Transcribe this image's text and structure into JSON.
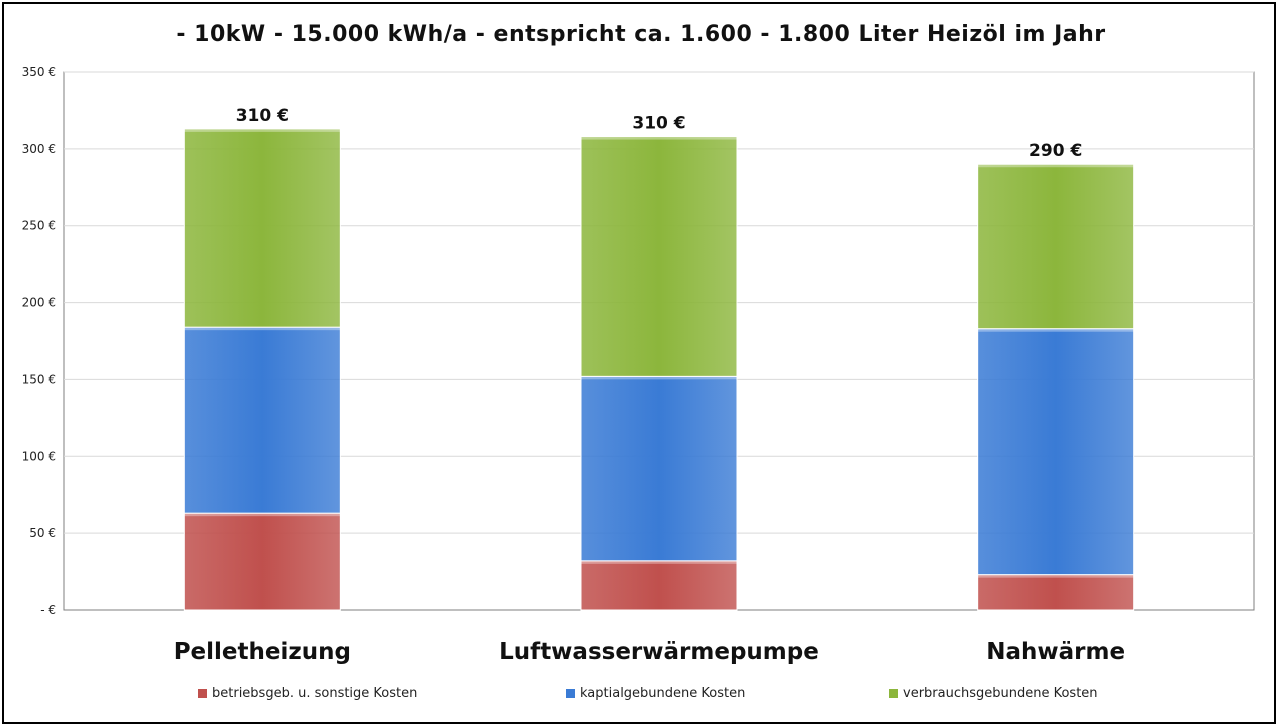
{
  "chart_data": {
    "type": "bar",
    "stacked": true,
    "title": "- 10kW - 15.000 kWh/a - entspricht ca. 1.600 - 1.800 Liter Heizöl im Jahr",
    "categories": [
      "Pelletheizung",
      "Luftwasserwärmepumpe",
      "Nahwärme"
    ],
    "series": [
      {
        "name": "betriebsgeb. u. sonstige Kosten",
        "values": [
          63,
          32,
          23
        ],
        "color": "#c0504d"
      },
      {
        "name": "kaptialgebundene Kosten",
        "values": [
          121,
          120,
          160
        ],
        "color": "#3a7bd5"
      },
      {
        "name": "verbrauchsgebundene Kosten",
        "values": [
          129,
          156,
          107
        ],
        "color": "#8cb63c"
      }
    ],
    "total_labels": [
      "310 €",
      "310 €",
      "290 €"
    ],
    "yticks": [
      {
        "value": 0,
        "label": "-  €"
      },
      {
        "value": 50,
        "label": "50 €"
      },
      {
        "value": 100,
        "label": "100 €"
      },
      {
        "value": 150,
        "label": "150 €"
      },
      {
        "value": 200,
        "label": "200 €"
      },
      {
        "value": 250,
        "label": "250 €"
      },
      {
        "value": 300,
        "label": "300 €"
      },
      {
        "value": 350,
        "label": "350 €"
      }
    ],
    "ylim": [
      0,
      350
    ],
    "grid": true,
    "legend_position": "bottom"
  }
}
